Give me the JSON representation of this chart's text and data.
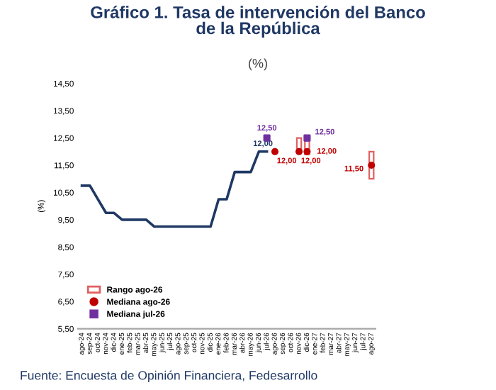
{
  "chart_data": {
    "type": "line",
    "title": "Gráfico 1. Tasa de intervención del Banco\nde la República",
    "subtitle": "(%)",
    "ylabel": "(%)",
    "annotations": [
      "Fuente: Encuesta de Opinión Financiera, Fedesarrollo"
    ],
    "categories": [
      "ago-24",
      "sep-24",
      "oct-24",
      "nov-24",
      "dic-24",
      "ene-25",
      "feb-25",
      "mar-25",
      "abr-25",
      "may-25",
      "jun-25",
      "jul-25",
      "ago-25",
      "sep-25",
      "oct-25",
      "nov-25",
      "dic-25",
      "ene-26",
      "feb-26",
      "mar-26",
      "abr-26",
      "may-26",
      "jun-26",
      "jul-26",
      "ago-26",
      "sep-26",
      "oct-26",
      "nov-26",
      "dic-26",
      "ene-27",
      "feb-27",
      "mar-27",
      "abr-27",
      "may-27",
      "jun-27",
      "jul-27",
      "ago-27"
    ],
    "series": [
      {
        "color": "#1f3864",
        "values": [
          10.75,
          10.75,
          10.25,
          9.75,
          9.75,
          9.5,
          9.5,
          9.5,
          9.5,
          9.25,
          9.25,
          9.25,
          9.25,
          9.25,
          9.25,
          9.25,
          9.25,
          10.25,
          10.25,
          11.25,
          11.25,
          11.25,
          12.0,
          12.0,
          null,
          null,
          null,
          null,
          null,
          null,
          null,
          null,
          null,
          null,
          null,
          null,
          null
        ],
        "value_labels": [
          null,
          null,
          null,
          null,
          null,
          null,
          null,
          null,
          null,
          null,
          null,
          null,
          null,
          null,
          null,
          null,
          null,
          null,
          null,
          null,
          null,
          null,
          null,
          "12,00",
          null,
          null,
          null,
          null,
          null,
          null,
          null,
          null,
          null,
          null,
          null,
          null,
          null
        ]
      },
      {
        "type": "bar",
        "name": "Rango ago-26",
        "color": "#e06060",
        "base": [
          null,
          null,
          null,
          null,
          null,
          null,
          null,
          null,
          null,
          null,
          null,
          null,
          null,
          null,
          null,
          null,
          null,
          null,
          null,
          null,
          null,
          null,
          null,
          null,
          null,
          null,
          null,
          12.0,
          11.9,
          null,
          null,
          null,
          null,
          null,
          null,
          null,
          11.0
        ],
        "values": [
          null,
          null,
          null,
          null,
          null,
          null,
          null,
          null,
          null,
          null,
          null,
          null,
          null,
          null,
          null,
          null,
          null,
          null,
          null,
          null,
          null,
          null,
          null,
          null,
          null,
          null,
          null,
          0.5,
          0.5,
          null,
          null,
          null,
          null,
          null,
          null,
          null,
          1.0
        ]
      },
      {
        "type": "scatter",
        "name": "Mediana ago-26",
        "color": "#c00000",
        "marker": "circle",
        "values": [
          null,
          null,
          null,
          null,
          null,
          null,
          null,
          null,
          null,
          null,
          null,
          null,
          null,
          null,
          null,
          null,
          null,
          null,
          null,
          null,
          null,
          null,
          null,
          null,
          12.0,
          null,
          null,
          12.0,
          12.0,
          null,
          null,
          null,
          null,
          null,
          null,
          null,
          11.5
        ],
        "value_labels": [
          null,
          null,
          null,
          null,
          null,
          null,
          null,
          null,
          null,
          null,
          null,
          null,
          null,
          null,
          null,
          null,
          null,
          null,
          null,
          null,
          null,
          null,
          null,
          null,
          "12,00",
          null,
          null,
          "12,00",
          "12,00",
          null,
          null,
          null,
          null,
          null,
          null,
          null,
          "11,50"
        ]
      },
      {
        "type": "scatter",
        "name": "Mediana jul-26",
        "color": "#7030a0",
        "marker": "square",
        "values": [
          null,
          null,
          null,
          null,
          null,
          null,
          null,
          null,
          null,
          null,
          null,
          null,
          null,
          null,
          null,
          null,
          null,
          null,
          null,
          null,
          null,
          null,
          null,
          12.5,
          null,
          null,
          null,
          null,
          12.5,
          null,
          null,
          null,
          null,
          null,
          null,
          null,
          null
        ],
        "value_labels": [
          null,
          null,
          null,
          null,
          null,
          null,
          null,
          null,
          null,
          null,
          null,
          null,
          null,
          null,
          null,
          null,
          null,
          null,
          null,
          null,
          null,
          null,
          null,
          "12,50",
          null,
          null,
          null,
          null,
          "12,50",
          null,
          null,
          null,
          null,
          null,
          null,
          null,
          null
        ]
      }
    ],
    "ylim": [
      5.5,
      14.5
    ],
    "yticks": [
      {
        "value": 5.5,
        "label": "5,50"
      },
      {
        "value": 6.5,
        "label": "6,50"
      },
      {
        "value": 7.5,
        "label": "7,50"
      },
      {
        "value": 8.5,
        "label": "8,50"
      },
      {
        "value": 9.5,
        "label": "9,50"
      },
      {
        "value": 10.5,
        "label": "10,50"
      },
      {
        "value": 11.5,
        "label": "11,50"
      },
      {
        "value": 12.5,
        "label": "12,50"
      },
      {
        "value": 13.5,
        "label": "13,50"
      },
      {
        "value": 14.5,
        "label": "14,50"
      }
    ],
    "legend": "bottom left",
    "grid": false
  }
}
